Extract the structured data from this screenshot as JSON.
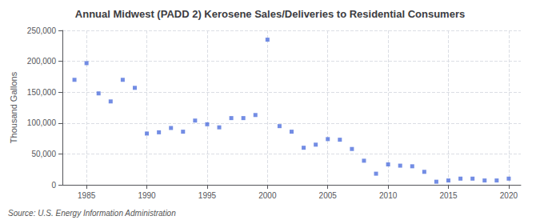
{
  "chart_data": {
    "type": "scatter",
    "title": "Annual Midwest (PADD 2) Kerosene Sales/Deliveries to Residential Consumers",
    "ylabel": "Thousand Gallons",
    "annotations": [
      "Source: U.S. Energy Information Administration"
    ],
    "x": [
      1984,
      1985,
      1986,
      1987,
      1988,
      1989,
      1990,
      1991,
      1992,
      1993,
      1994,
      1995,
      1996,
      1997,
      1998,
      1999,
      2000,
      2001,
      2002,
      2003,
      2004,
      2005,
      2006,
      2007,
      2008,
      2009,
      2010,
      2011,
      2012,
      2013,
      2014,
      2015,
      2016,
      2017,
      2018,
      2019,
      2020
    ],
    "values": [
      170000,
      197000,
      148000,
      135000,
      170000,
      157000,
      83000,
      85000,
      92000,
      86000,
      104000,
      98000,
      93000,
      108000,
      108000,
      113000,
      235000,
      95000,
      86000,
      60000,
      65000,
      74000,
      73000,
      58000,
      39000,
      18000,
      33000,
      31000,
      30000,
      21000,
      5000,
      7000,
      10000,
      10000,
      7000,
      7000,
      10000
    ],
    "marker": "square",
    "xlim": [
      1983,
      2021
    ],
    "xticks": [
      1985,
      1990,
      1995,
      2000,
      2005,
      2010,
      2015,
      2020
    ],
    "ylim": [
      0,
      250000
    ],
    "yticks": [
      0,
      {
        "value": 50000,
        "label": "50,000"
      },
      {
        "value": 100000,
        "label": "100,000"
      },
      {
        "value": 150000,
        "label": "150,000"
      },
      {
        "value": 200000,
        "label": "200,000"
      },
      {
        "value": 250000,
        "label": "250,000"
      }
    ],
    "grid": true
  }
}
